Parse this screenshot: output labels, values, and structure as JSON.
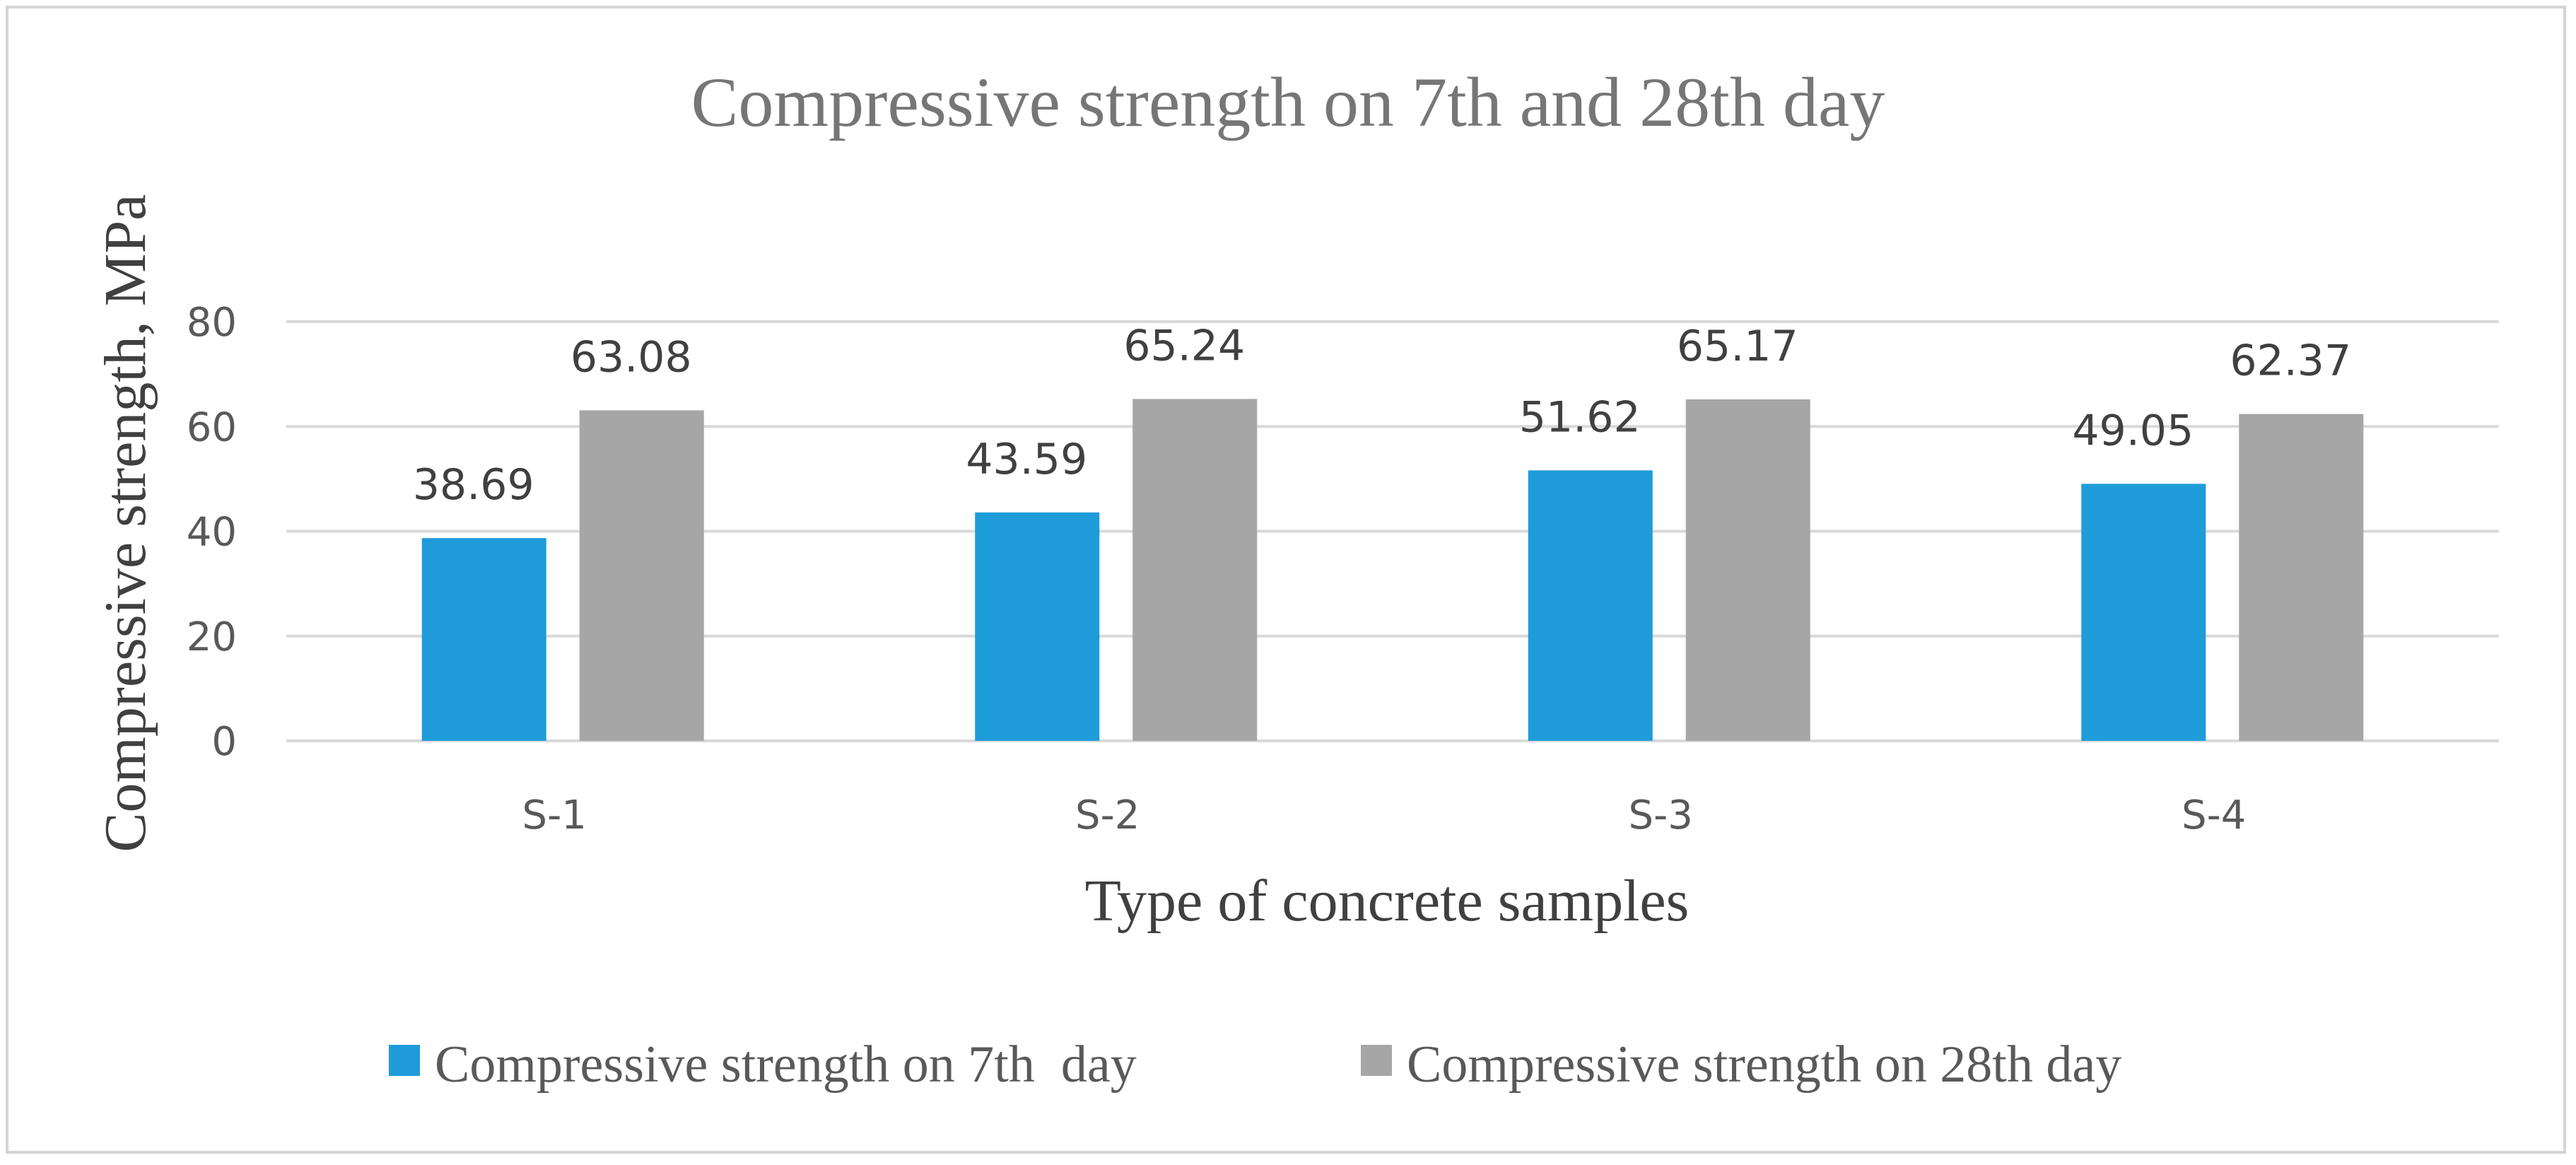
{
  "chart_data": {
    "type": "bar",
    "title": "Compressive strength on 7th and 28th day",
    "xlabel": "Type of concrete samples",
    "ylabel": "Compressive strength, MPa",
    "categories": [
      "S-1",
      "S-2",
      "S-3",
      "S-4"
    ],
    "series": [
      {
        "name": "Compressive strength on 7th  day",
        "color": "#1e9cd9",
        "values": [
          38.69,
          43.59,
          51.62,
          49.05
        ],
        "labels": [
          "38.69",
          "43.59",
          "51.62",
          "49.05"
        ]
      },
      {
        "name": "Compressive strength on 28th day",
        "color": "#a6a6a6",
        "values": [
          63.08,
          65.24,
          65.17,
          62.37
        ],
        "labels": [
          "63.08",
          "65.24",
          "65.17",
          "62.37"
        ]
      }
    ],
    "ylim": [
      0,
      80
    ],
    "yticks": [
      0,
      20,
      40,
      60,
      80
    ],
    "ytick_labels": [
      "0",
      "20",
      "40",
      "60",
      "80"
    ],
    "grid": true,
    "legend_position": "bottom"
  }
}
